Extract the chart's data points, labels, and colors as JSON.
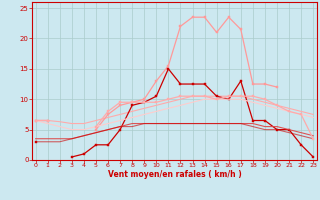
{
  "xlabel": "Vent moyen/en rafales ( km/h )",
  "background_color": "#cce8f0",
  "grid_color": "#aacccc",
  "x": [
    0,
    1,
    2,
    3,
    4,
    5,
    6,
    7,
    8,
    9,
    10,
    11,
    12,
    13,
    14,
    15,
    16,
    17,
    18,
    19,
    20,
    21,
    22,
    23
  ],
  "lines": [
    {
      "color": "#ffaaaa",
      "alpha": 1.0,
      "linewidth": 0.8,
      "marker": null,
      "values": [
        6.5,
        6.5,
        6.3,
        6.0,
        6.0,
        6.5,
        7.0,
        7.5,
        8.0,
        8.5,
        9.0,
        9.5,
        10.0,
        10.5,
        10.5,
        10.5,
        10.5,
        10.5,
        10.0,
        9.5,
        9.0,
        8.5,
        8.0,
        7.5
      ]
    },
    {
      "color": "#ff9999",
      "alpha": 1.0,
      "linewidth": 0.9,
      "marker": "s",
      "markersize": 2.0,
      "values": [
        6.5,
        6.5,
        null,
        null,
        null,
        5.0,
        7.5,
        9.0,
        9.5,
        10.0,
        13.0,
        15.5,
        22.0,
        23.5,
        23.5,
        21.0,
        23.5,
        21.5,
        12.5,
        12.5,
        12.0,
        null,
        null,
        null
      ]
    },
    {
      "color": "#cc0000",
      "alpha": 1.0,
      "linewidth": 0.9,
      "marker": "s",
      "markersize": 2.0,
      "values": [
        3.0,
        null,
        null,
        0.5,
        1.0,
        2.5,
        2.5,
        5.0,
        9.0,
        9.5,
        10.5,
        15.0,
        12.5,
        12.5,
        12.5,
        10.5,
        10.0,
        13.0,
        6.5,
        6.5,
        5.0,
        5.0,
        2.5,
        0.5
      ]
    },
    {
      "color": "#ffcccc",
      "alpha": 1.0,
      "linewidth": 0.8,
      "marker": null,
      "values": [
        6.5,
        6.0,
        5.5,
        5.0,
        5.0,
        5.5,
        6.0,
        6.5,
        7.0,
        7.5,
        8.0,
        8.5,
        9.0,
        9.5,
        10.0,
        10.0,
        10.0,
        10.0,
        9.5,
        9.0,
        8.5,
        8.0,
        7.5,
        7.0
      ]
    },
    {
      "color": "#dd4444",
      "alpha": 0.9,
      "linewidth": 0.8,
      "marker": null,
      "values": [
        3.5,
        3.5,
        3.5,
        3.5,
        4.0,
        4.5,
        5.0,
        5.5,
        6.0,
        6.0,
        6.0,
        6.0,
        6.0,
        6.0,
        6.0,
        6.0,
        6.0,
        6.0,
        6.0,
        5.5,
        5.5,
        5.0,
        4.5,
        4.0
      ]
    },
    {
      "color": "#cc0000",
      "alpha": 0.6,
      "linewidth": 0.8,
      "marker": null,
      "values": [
        3.0,
        3.0,
        3.0,
        3.5,
        4.0,
        4.5,
        5.0,
        5.5,
        5.5,
        6.0,
        6.0,
        6.0,
        6.0,
        6.0,
        6.0,
        6.0,
        6.0,
        6.0,
        5.5,
        5.0,
        5.0,
        4.5,
        4.0,
        3.5
      ]
    },
    {
      "color": "#ffaaaa",
      "alpha": 1.0,
      "linewidth": 0.9,
      "marker": "s",
      "markersize": 2.0,
      "values": [
        6.5,
        6.5,
        null,
        null,
        null,
        5.5,
        8.0,
        9.5,
        9.5,
        9.5,
        9.5,
        10.0,
        10.5,
        10.5,
        10.5,
        10.0,
        10.5,
        10.5,
        10.5,
        10.0,
        9.0,
        8.0,
        7.5,
        3.5
      ]
    }
  ],
  "ylim": [
    0,
    26
  ],
  "yticks": [
    0,
    5,
    10,
    15,
    20,
    25
  ],
  "xlim": [
    -0.3,
    23.3
  ],
  "xticks": [
    0,
    1,
    2,
    3,
    4,
    5,
    6,
    7,
    8,
    9,
    10,
    11,
    12,
    13,
    14,
    15,
    16,
    17,
    18,
    19,
    20,
    21,
    22,
    23
  ]
}
